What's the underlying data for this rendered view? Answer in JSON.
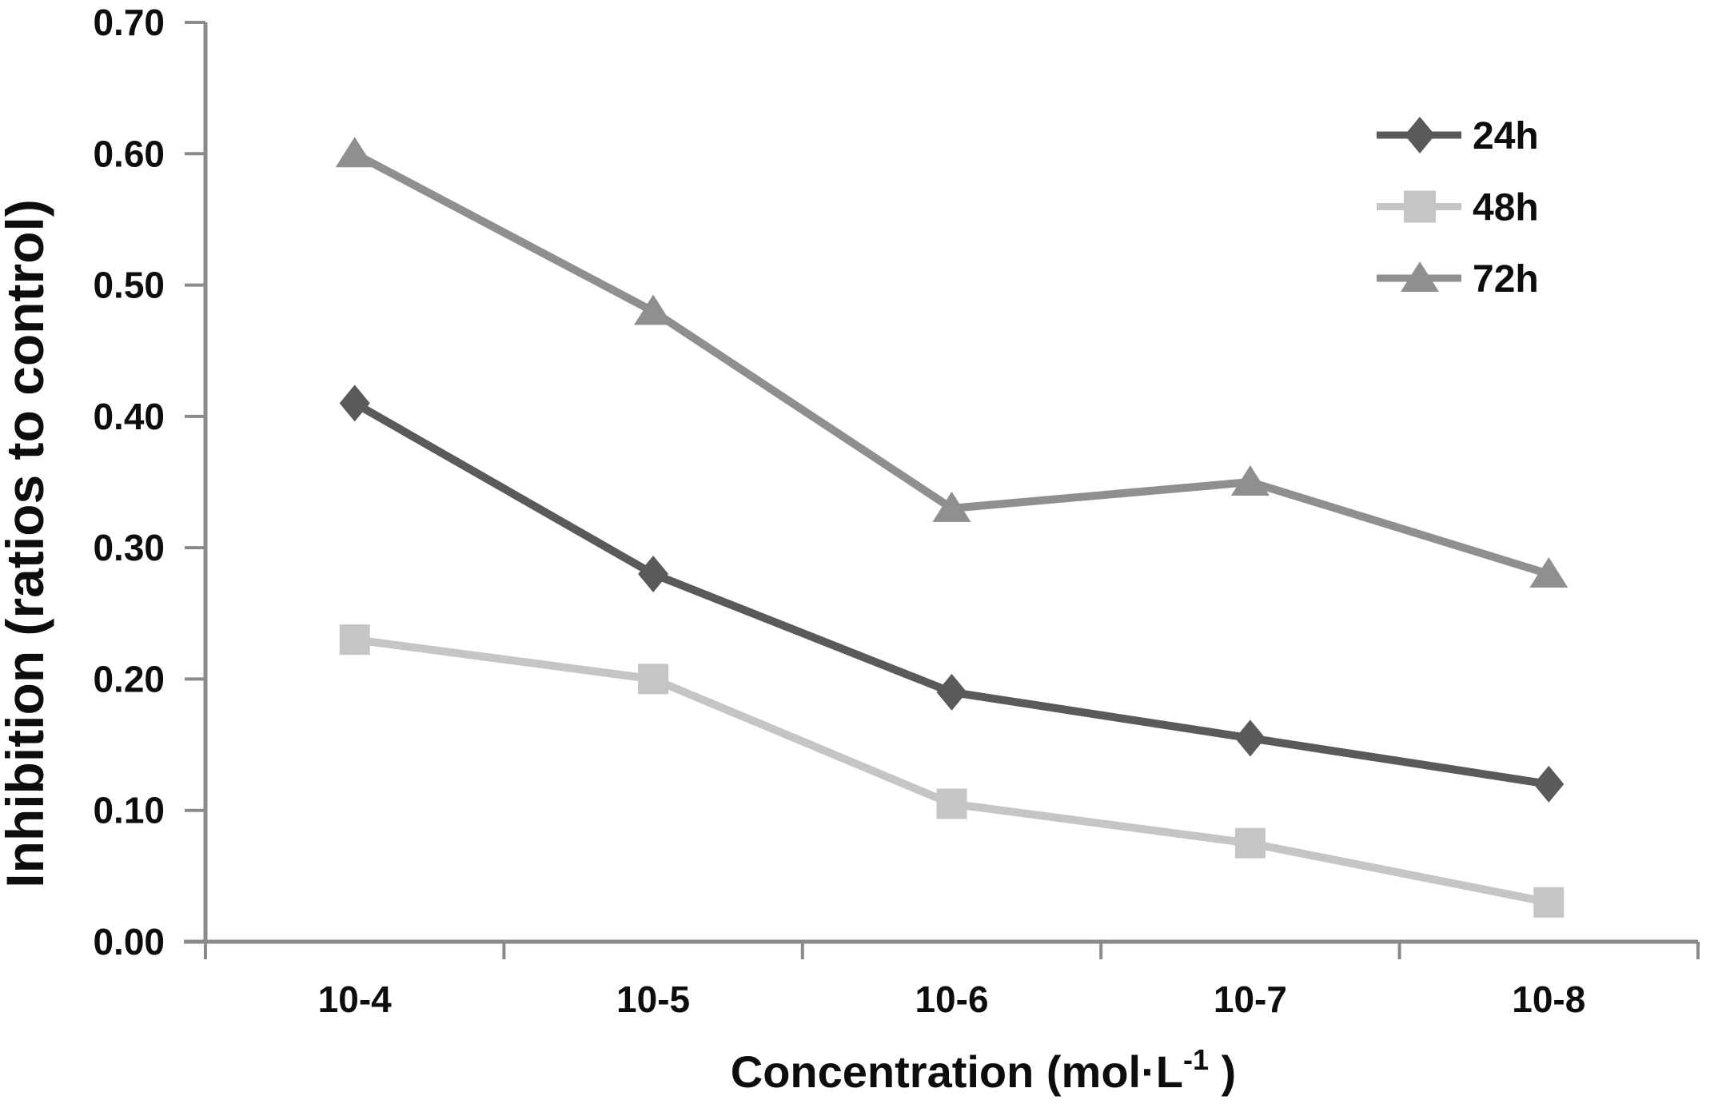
{
  "page": {
    "background": "#ffffff"
  },
  "chart_data": {
    "type": "line",
    "title": "",
    "xlabel": {
      "full": "Concentration (mol·L-1 )",
      "base": "Concentration (mol·L",
      "sup": "-1",
      "close": " )"
    },
    "ylabel": "Inhibition  (ratios to control)",
    "categories": [
      "10-4",
      "10-5",
      "10-6",
      "10-7",
      "10-8"
    ],
    "y_ticks": [
      "0.00",
      "0.10",
      "0.20",
      "0.30",
      "0.40",
      "0.50",
      "0.60",
      "0.70"
    ],
    "ylim": [
      0,
      0.7
    ],
    "grid": false,
    "legend_position": "top-right",
    "axis_color": "#8a8a8a",
    "text_color": "#0d0d0d",
    "series": [
      {
        "name": "24h",
        "marker": "diamond",
        "color": "#5a5a5a",
        "values": [
          0.41,
          0.28,
          0.19,
          0.155,
          0.12
        ]
      },
      {
        "name": "48h",
        "marker": "square",
        "color": "#c5c5c5",
        "values": [
          0.23,
          0.2,
          0.105,
          0.075,
          0.03
        ]
      },
      {
        "name": "72h",
        "marker": "triangle",
        "color": "#8f8f8f",
        "values": [
          0.6,
          0.48,
          0.33,
          0.35,
          0.28
        ]
      }
    ]
  }
}
